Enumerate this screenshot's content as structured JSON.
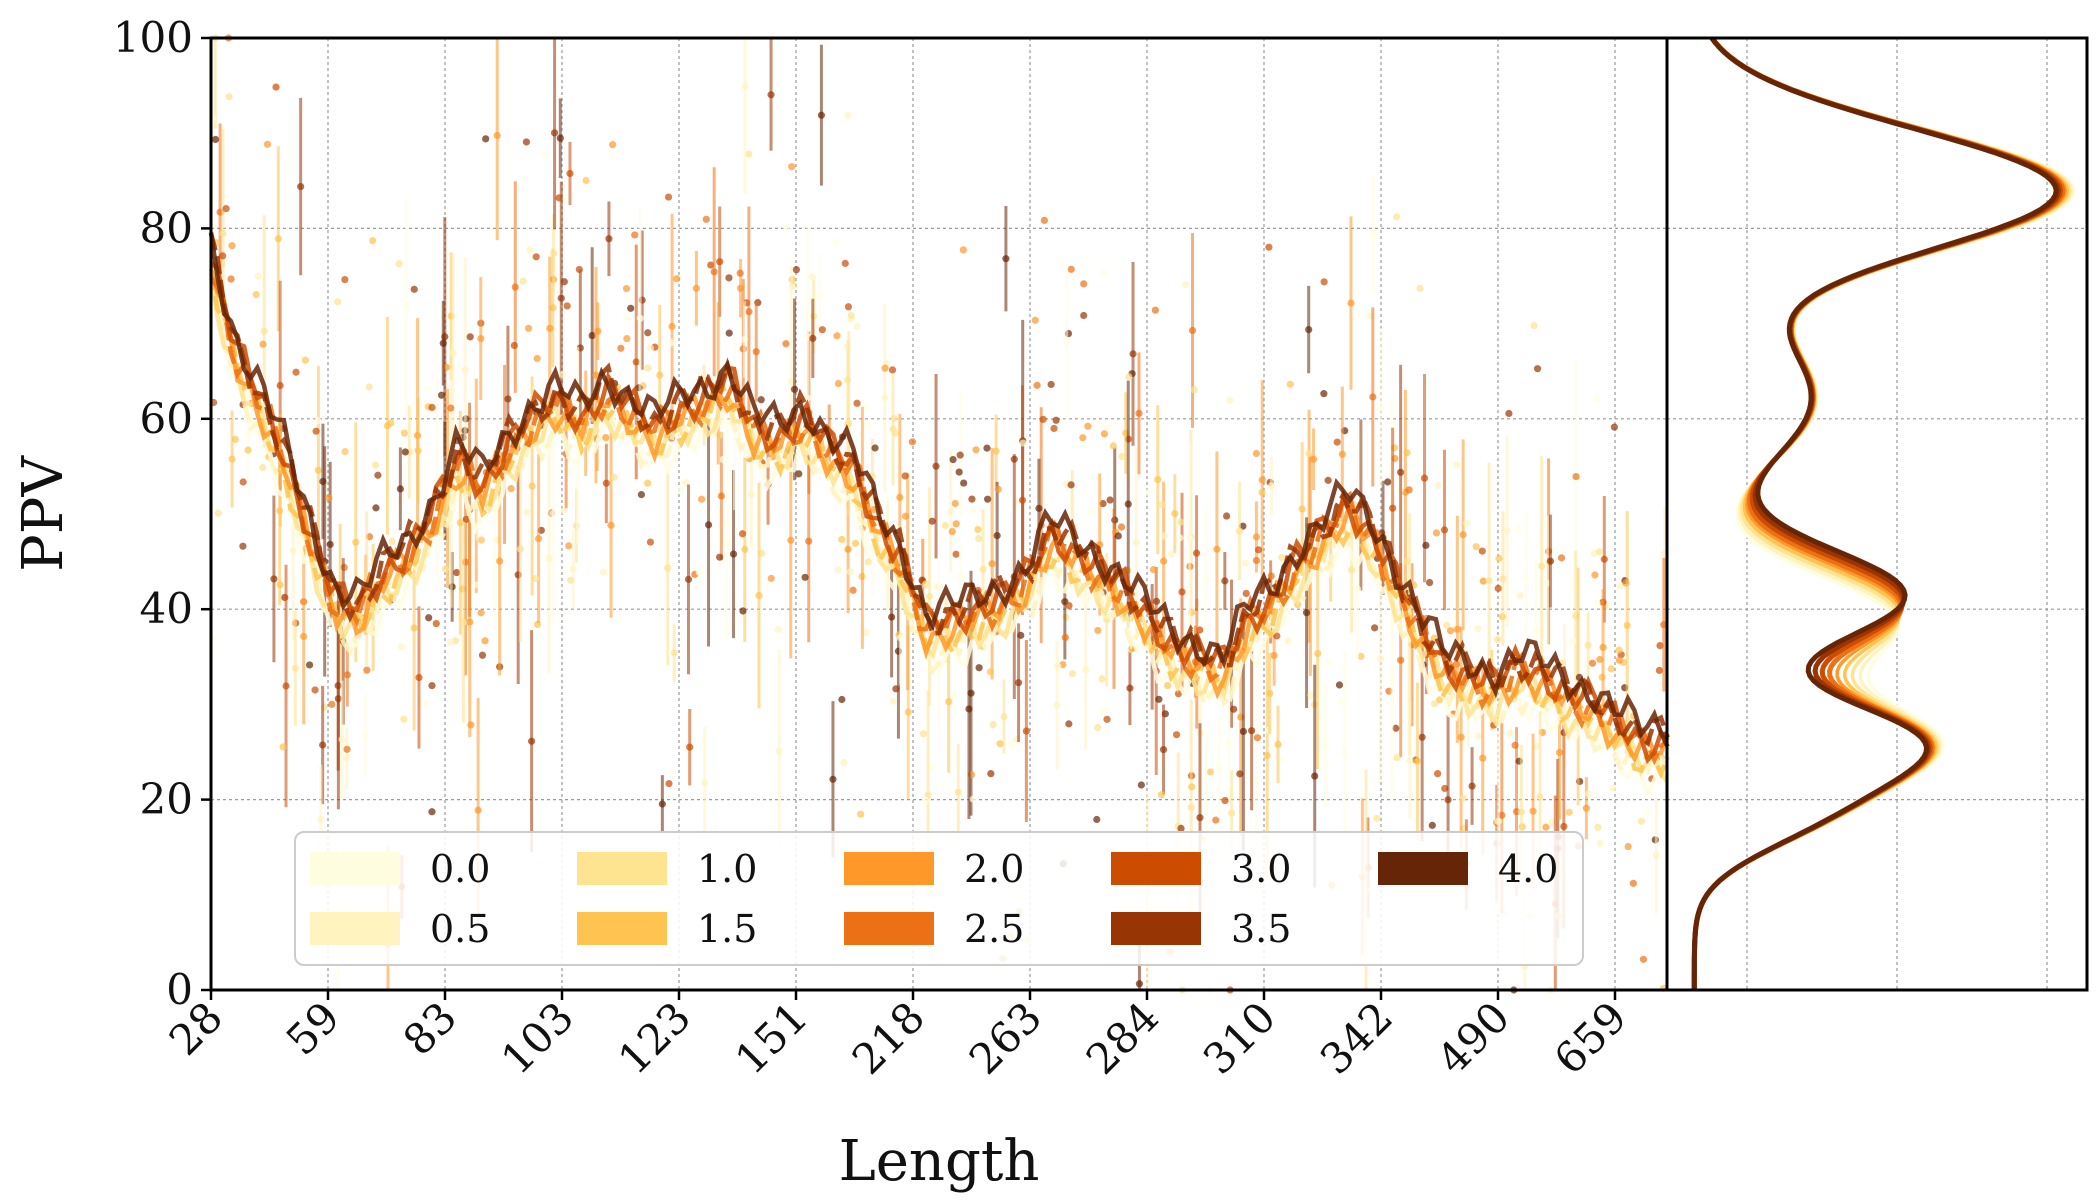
{
  "chart_data": {
    "type": "line",
    "xlabel": "Length",
    "ylabel": "PPV",
    "ylim": [
      0,
      100
    ],
    "yticks": [
      0,
      20,
      40,
      60,
      80,
      100
    ],
    "x_tick_labels": [
      "28",
      "59",
      "83",
      "103",
      "123",
      "151",
      "218",
      "263",
      "284",
      "310",
      "342",
      "490",
      "659"
    ],
    "grid": true,
    "legend": {
      "placement": "lower-left",
      "columns": 5
    },
    "series": [
      {
        "name": "0.0",
        "color": "#fffde0"
      },
      {
        "name": "0.5",
        "color": "#fff3c0"
      },
      {
        "name": "1.0",
        "color": "#fee391"
      },
      {
        "name": "1.5",
        "color": "#fec44f"
      },
      {
        "name": "2.0",
        "color": "#fe9929"
      },
      {
        "name": "2.5",
        "color": "#ec7014"
      },
      {
        "name": "3.0",
        "color": "#cc4c02"
      },
      {
        "name": "3.5",
        "color": "#993404"
      },
      {
        "name": "4.0",
        "color": "#662506"
      }
    ],
    "smoothed_ppv_by_tick_position": [
      76,
      66,
      61,
      55,
      47,
      40,
      39,
      43,
      45,
      49,
      55,
      52,
      56,
      59,
      61,
      59,
      62,
      60,
      58,
      60,
      61,
      63,
      58,
      57,
      59,
      56,
      54,
      48,
      44,
      37,
      38,
      39,
      40,
      42,
      47,
      45,
      43,
      41,
      38,
      35,
      34,
      33,
      38,
      40,
      44,
      47,
      50,
      47,
      42,
      37,
      33,
      32,
      31,
      33,
      32,
      30,
      29,
      27,
      25,
      25
    ]
  },
  "side_panel": {
    "type": "density",
    "description_values": {
      "peaks_ppv": [
        84,
        40,
        26
      ],
      "troughs_ppv": [
        57,
        33
      ]
    }
  }
}
